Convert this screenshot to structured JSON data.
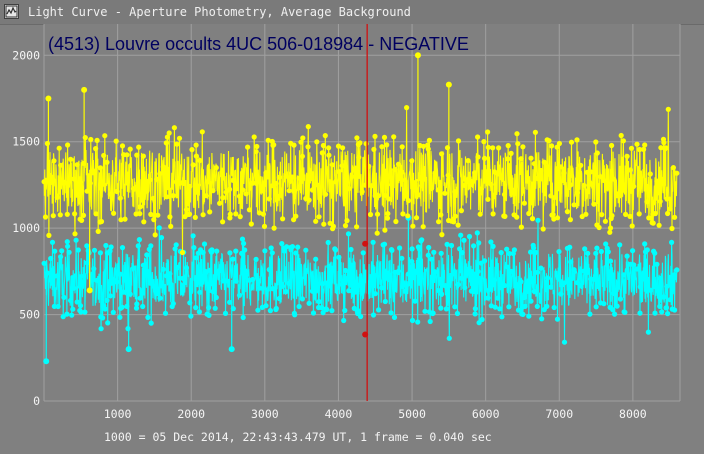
{
  "window": {
    "title": "Light Curve - Aperture Photometry, Average Background",
    "icon": "light-curve-app-icon"
  },
  "colors": {
    "background": "#808080",
    "grid": "#a0a0a0",
    "target_series": "#ffff00",
    "comparison_series": "#00ffff",
    "cursor": "#d01010",
    "chart_title": "#000060"
  },
  "footer": {
    "text": "1000 = 05 Dec 2014, 22:43:43.479 UT, 1 frame = 0.040 sec"
  },
  "chart_data": {
    "type": "scatter",
    "title": "(4513) Louvre occults 4UC 506-018984 - NEGATIVE",
    "xlabel": "",
    "ylabel": "",
    "xlim": [
      0,
      8640
    ],
    "ylim": [
      0,
      2100
    ],
    "x_ticks": [
      1000,
      2000,
      3000,
      4000,
      5000,
      6000,
      7000,
      8000
    ],
    "y_ticks": [
      0,
      500,
      1000,
      1500,
      2000
    ],
    "grid": true,
    "legend": "none",
    "cursor_frame": 4390,
    "cursor_values": [
      910,
      385
    ],
    "series": [
      {
        "key": "target",
        "color": "#ffff00",
        "n_points": 8600,
        "mean": 1270,
        "spread": 115,
        "min": 640,
        "max": 2000,
        "notable_points": [
          [
            545,
            1800
          ],
          [
            5080,
            2000
          ],
          [
            5500,
            1830
          ],
          [
            60,
            1750
          ],
          [
            620,
            640
          ]
        ]
      },
      {
        "key": "comparison",
        "color": "#00ffff",
        "n_points": 8600,
        "mean": 700,
        "spread": 95,
        "min": 220,
        "max": 1080,
        "notable_points": [
          [
            30,
            230
          ],
          [
            2550,
            300
          ],
          [
            1150,
            300
          ],
          [
            4950,
            1060
          ]
        ]
      }
    ]
  }
}
